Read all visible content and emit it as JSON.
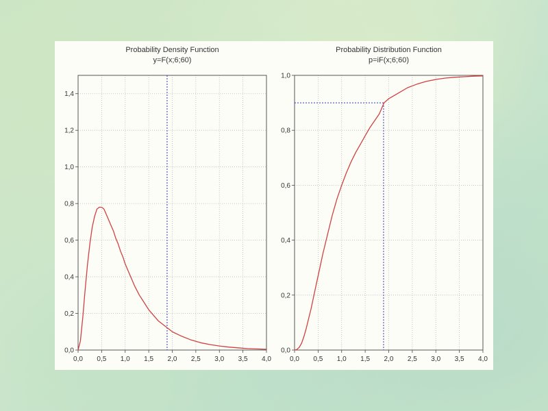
{
  "chart_data": [
    {
      "type": "line",
      "title": "Probability Density Function",
      "subtitle": "y=F(x;6;60)",
      "xlim": [
        0,
        4
      ],
      "ylim": [
        0,
        1.5
      ],
      "xticks": [
        "0,0",
        "0,5",
        "1,0",
        "1,5",
        "2,0",
        "2,5",
        "3,0",
        "3,5",
        "4,0"
      ],
      "yticks": [
        "0,0",
        "0,2",
        "0,4",
        "0,6",
        "0,8",
        "1,0",
        "1,2",
        "1,4"
      ],
      "grid": true,
      "series_color": "#d04040",
      "marker_color": "#3030c0",
      "x": [
        0.0,
        0.05,
        0.1,
        0.15,
        0.2,
        0.25,
        0.3,
        0.35,
        0.4,
        0.45,
        0.5,
        0.55,
        0.6,
        0.65,
        0.7,
        0.75,
        0.8,
        0.85,
        0.9,
        0.95,
        1.0,
        1.1,
        1.2,
        1.3,
        1.4,
        1.5,
        1.6,
        1.7,
        1.8,
        1.9,
        2.0,
        2.2,
        2.4,
        2.6,
        2.8,
        3.0,
        3.2,
        3.4,
        3.6,
        3.8,
        4.0
      ],
      "y": [
        0.0,
        0.05,
        0.18,
        0.33,
        0.47,
        0.58,
        0.67,
        0.73,
        0.77,
        0.78,
        0.78,
        0.77,
        0.74,
        0.71,
        0.68,
        0.65,
        0.61,
        0.58,
        0.54,
        0.51,
        0.47,
        0.41,
        0.35,
        0.3,
        0.26,
        0.22,
        0.19,
        0.16,
        0.14,
        0.12,
        0.1,
        0.075,
        0.055,
        0.04,
        0.03,
        0.022,
        0.016,
        0.012,
        0.008,
        0.006,
        0.004
      ],
      "vline_x": 1.89
    },
    {
      "type": "line",
      "title": "Probability Distribution Function",
      "subtitle": "p=iF(x;6;60)",
      "xlim": [
        0,
        4
      ],
      "ylim": [
        0,
        1
      ],
      "xticks": [
        "0,0",
        "0,5",
        "1,0",
        "1,5",
        "2,0",
        "2,5",
        "3,0",
        "3,5",
        "4,0"
      ],
      "yticks": [
        "0,0",
        "0,2",
        "0,4",
        "0,6",
        "0,8",
        "1,0"
      ],
      "grid": true,
      "series_color": "#d04040",
      "marker_color": "#3030c0",
      "x": [
        0.0,
        0.05,
        0.1,
        0.15,
        0.2,
        0.25,
        0.3,
        0.35,
        0.4,
        0.45,
        0.5,
        0.6,
        0.7,
        0.8,
        0.9,
        1.0,
        1.1,
        1.2,
        1.3,
        1.4,
        1.5,
        1.6,
        1.7,
        1.8,
        1.9,
        2.0,
        2.2,
        2.4,
        2.6,
        2.8,
        3.0,
        3.2,
        3.4,
        3.6,
        3.8,
        4.0
      ],
      "y": [
        0.0,
        0.002,
        0.01,
        0.025,
        0.05,
        0.08,
        0.115,
        0.15,
        0.19,
        0.23,
        0.27,
        0.35,
        0.42,
        0.49,
        0.55,
        0.6,
        0.645,
        0.685,
        0.72,
        0.75,
        0.78,
        0.81,
        0.835,
        0.86,
        0.9,
        0.915,
        0.935,
        0.955,
        0.968,
        0.978,
        0.985,
        0.99,
        0.993,
        0.995,
        0.997,
        0.998
      ],
      "marker_x": 1.89,
      "marker_y": 0.9
    }
  ]
}
